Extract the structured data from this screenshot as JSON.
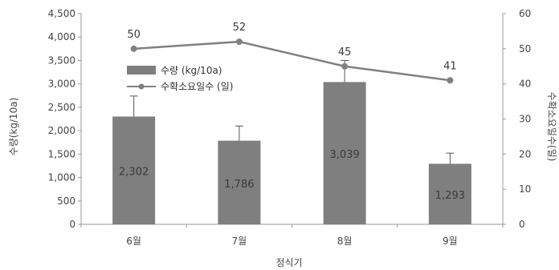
{
  "chart_data": {
    "type": "bar",
    "categories": [
      "6월",
      "7월",
      "8월",
      "9월"
    ],
    "xlabel": "정식기",
    "ylabel": "수량(kg/10a)",
    "y2label": "수확소요일수(일)",
    "ylim": [
      0,
      4500
    ],
    "y2lim": [
      0,
      60
    ],
    "yticks": [
      "0",
      "500",
      "1,000",
      "1,500",
      "2,000",
      "2,500",
      "3,000",
      "3,500",
      "4,000",
      "4,500"
    ],
    "y2ticks": [
      "0",
      "10",
      "20",
      "30",
      "40",
      "50",
      "60"
    ],
    "grid": false,
    "legend_position": "top-left",
    "series": [
      {
        "name": "수량 (kg/10a)",
        "type": "bar",
        "axis": "left",
        "values": [
          2302,
          1786,
          3039,
          1293
        ],
        "labels": [
          "2,302",
          "1,786",
          "3,039",
          "1,293"
        ],
        "error_upper": [
          2740,
          2100,
          3500,
          1520
        ],
        "error_lower": [
          2300,
          1780,
          3040,
          1290
        ],
        "color": "#7f7f7f"
      },
      {
        "name": "수확소요일수 (일)",
        "type": "line",
        "axis": "right",
        "values": [
          50,
          52,
          45,
          41
        ],
        "labels": [
          "50",
          "52",
          "45",
          "41"
        ],
        "color": "#808080"
      }
    ]
  }
}
